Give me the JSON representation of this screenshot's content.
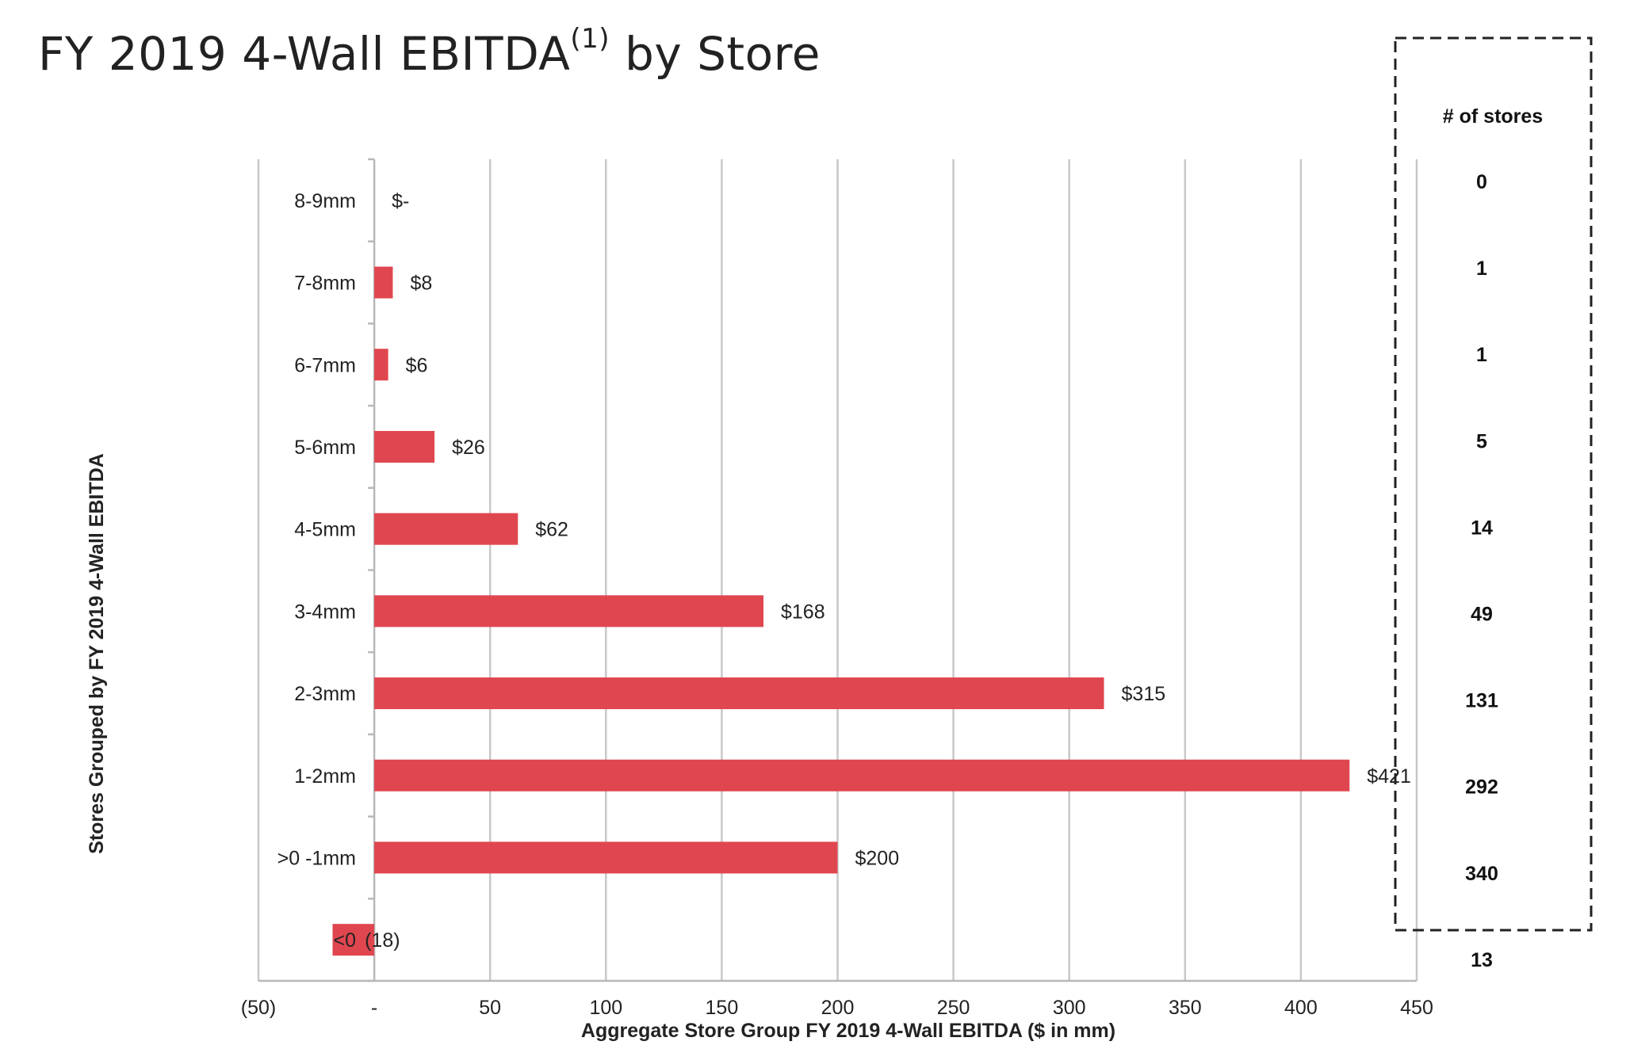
{
  "title": {
    "main": "FY 2019 4-Wall EBITDA",
    "superscript": "(1)",
    "suffix": " by Store"
  },
  "chart_data": {
    "type": "bar",
    "orientation": "horizontal",
    "xlabel": "Aggregate Store Group FY 2019 4-Wall EBITDA ($ in mm)",
    "ylabel": "Stores Grouped by FY 2019 4-Wall EBITDA",
    "xlim": [
      -50,
      450
    ],
    "xticks": [
      {
        "value": -50,
        "label": "(50)"
      },
      {
        "value": 0,
        "label": "-"
      },
      {
        "value": 50,
        "label": "50"
      },
      {
        "value": 100,
        "label": "100"
      },
      {
        "value": 150,
        "label": "150"
      },
      {
        "value": 200,
        "label": "200"
      },
      {
        "value": 250,
        "label": "250"
      },
      {
        "value": 300,
        "label": "300"
      },
      {
        "value": 350,
        "label": "350"
      },
      {
        "value": 400,
        "label": "400"
      },
      {
        "value": 450,
        "label": "450"
      }
    ],
    "categories": [
      "8-9mm",
      "7-8mm",
      "6-7mm",
      "5-6mm",
      "4-5mm",
      "3-4mm",
      "2-3mm",
      "1-2mm",
      ">0 -1mm",
      "<0"
    ],
    "values": [
      0,
      8,
      6,
      26,
      62,
      168,
      315,
      421,
      200,
      -18
    ],
    "data_labels": [
      "$-",
      "$8",
      "$6",
      "$26",
      "$62",
      "$168",
      "$315",
      "$421",
      "$200",
      "(18)"
    ],
    "bar_color": "#e0464f",
    "grid": true,
    "store_counts": {
      "header": "# of stores",
      "values": [
        "0",
        "1",
        "1",
        "5",
        "14",
        "49",
        "131",
        "292",
        "340",
        "13"
      ]
    }
  }
}
